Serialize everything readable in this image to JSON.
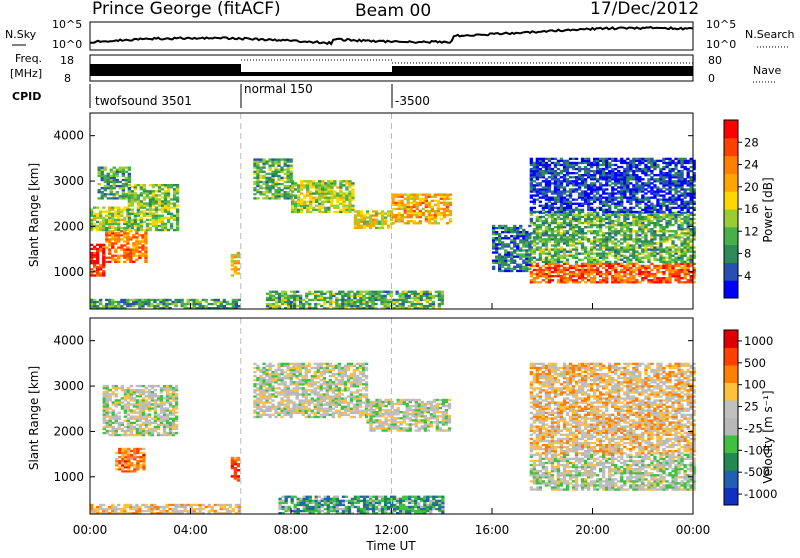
{
  "header": {
    "station": "Prince George (fitACF)",
    "beam": "Beam 00",
    "date": "17/Dec/2012"
  },
  "top_panels": {
    "nsky_label": "N.Sky",
    "nsearch_label": "N.Search",
    "nsky_ticks": [
      "10^5",
      "10^0"
    ],
    "nsky_ticks_right": [
      "10^5",
      "10^0"
    ],
    "freq_label_line1": "Freq.",
    "freq_label_line2": "[MHz]",
    "freq_ticks": [
      "18",
      "8"
    ],
    "nave_label": "Nave",
    "nave_ticks": [
      "80",
      "0"
    ],
    "cpid_label": "CPID",
    "cpid_segments": [
      {
        "label": "twofsound 3501",
        "start_hour": 0.0
      },
      {
        "label": "normal 150",
        "start_hour": 6.0
      },
      {
        "label": "-3500",
        "start_hour": 12.0
      }
    ]
  },
  "chart_data": [
    {
      "type": "heatmap",
      "name": "power",
      "ylabel": "Slant Range [km]",
      "xlim": [
        0,
        24
      ],
      "ylim": [
        180,
        4500
      ],
      "yticks": [
        "1000",
        "2000",
        "3000",
        "4000"
      ],
      "colorbar_label": "Power [dB]",
      "colorbar_ticks": [
        "4",
        "8",
        "12",
        "16",
        "20",
        "24",
        "28"
      ],
      "colorbar_colors": [
        "#0000ff",
        "#2850b4",
        "#2e8b57",
        "#48b048",
        "#9acd32",
        "#ffd700",
        "#ffa500",
        "#ff7f00",
        "#ff4000",
        "#ff0000"
      ],
      "cpid_boundaries_hours": [
        6,
        12
      ],
      "regions": [
        {
          "t0": 0.0,
          "t1": 0.6,
          "r0": 900,
          "r1": 1600,
          "level": 0.9
        },
        {
          "t0": 0.6,
          "t1": 2.2,
          "r0": 1200,
          "r1": 1900,
          "level": 0.75
        },
        {
          "t0": 0.0,
          "t1": 1.5,
          "r0": 1900,
          "r1": 2400,
          "level": 0.45
        },
        {
          "t0": 1.5,
          "t1": 3.5,
          "r0": 1900,
          "r1": 2900,
          "level": 0.4
        },
        {
          "t0": 0.3,
          "t1": 1.6,
          "r0": 2600,
          "r1": 3300,
          "level": 0.3
        },
        {
          "t0": 6.5,
          "t1": 8.0,
          "r0": 2600,
          "r1": 3500,
          "level": 0.35
        },
        {
          "t0": 8.0,
          "t1": 10.5,
          "r0": 2300,
          "r1": 3000,
          "level": 0.45
        },
        {
          "t0": 10.5,
          "t1": 12.0,
          "r0": 1950,
          "r1": 2350,
          "level": 0.55
        },
        {
          "t0": 12.0,
          "t1": 14.3,
          "r0": 2050,
          "r1": 2700,
          "level": 0.65
        },
        {
          "t0": 17.5,
          "t1": 24.0,
          "r0": 750,
          "r1": 1200,
          "level": 0.8
        },
        {
          "t0": 17.5,
          "t1": 24.0,
          "r0": 1200,
          "r1": 2300,
          "level": 0.35
        },
        {
          "t0": 17.5,
          "t1": 24.0,
          "r0": 2300,
          "r1": 3500,
          "level": 0.12
        },
        {
          "t0": 16.0,
          "t1": 17.5,
          "r0": 1000,
          "r1": 2000,
          "level": 0.2
        },
        {
          "t0": 5.6,
          "t1": 5.9,
          "r0": 900,
          "r1": 1400,
          "level": 0.6
        },
        {
          "t0": 0.0,
          "t1": 6.0,
          "r0": 180,
          "r1": 400,
          "level": 0.3
        },
        {
          "t0": 7.0,
          "t1": 14.0,
          "r0": 180,
          "r1": 550,
          "level": 0.35
        }
      ]
    },
    {
      "type": "heatmap",
      "name": "velocity",
      "ylabel": "Slant Range [km]",
      "xlim": [
        0,
        24
      ],
      "ylim": [
        180,
        4500
      ],
      "yticks": [
        "1000",
        "2000",
        "3000",
        "4000"
      ],
      "xlabel": "Time UT",
      "xticks": [
        "00:00",
        "04:00",
        "08:00",
        "12:00",
        "16:00",
        "20:00",
        "00:00"
      ],
      "colorbar_label": "Velocity [m s⁻¹]",
      "colorbar_ticks": [
        "1000",
        "500",
        "100",
        "25",
        "-25",
        "-100",
        "-500",
        "-1000"
      ],
      "colorbar_colors": [
        "#1030c0",
        "#2060b0",
        "#208a50",
        "#40c040",
        "#b8b8b8",
        "#c0c0c0",
        "#ffc040",
        "#ff8000",
        "#ff4000",
        "#e00000"
      ],
      "cpid_boundaries_hours": [
        6,
        12
      ],
      "regions": [
        {
          "t0": 0.5,
          "t1": 3.5,
          "r0": 1900,
          "r1": 3000,
          "level": 0.5
        },
        {
          "t0": 1.0,
          "t1": 2.2,
          "r0": 1100,
          "r1": 1600,
          "level": 0.75
        },
        {
          "t0": 6.5,
          "t1": 11.0,
          "r0": 2300,
          "r1": 3500,
          "level": 0.5
        },
        {
          "t0": 11.0,
          "t1": 14.3,
          "r0": 2000,
          "r1": 2700,
          "level": 0.5
        },
        {
          "t0": 17.5,
          "t1": 24.0,
          "r0": 700,
          "r1": 1500,
          "level": 0.48
        },
        {
          "t0": 17.5,
          "t1": 24.0,
          "r0": 1500,
          "r1": 2300,
          "level": 0.6
        },
        {
          "t0": 17.5,
          "t1": 24.0,
          "r0": 2300,
          "r1": 3500,
          "level": 0.62
        },
        {
          "t0": 5.6,
          "t1": 5.9,
          "r0": 900,
          "r1": 1400,
          "level": 0.85
        },
        {
          "t0": 7.5,
          "t1": 14.0,
          "r0": 180,
          "r1": 550,
          "level": 0.3
        },
        {
          "t0": 0.0,
          "t1": 6.0,
          "r0": 180,
          "r1": 400,
          "level": 0.6
        }
      ]
    }
  ]
}
